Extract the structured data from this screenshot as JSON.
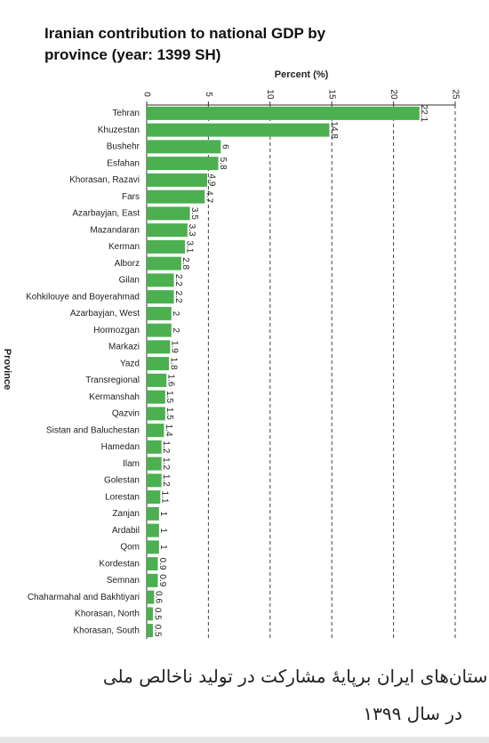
{
  "chart_data": {
    "type": "bar",
    "orientation": "horizontal",
    "title": "Iranian contribution to national GDP by province (year: 1399 SH)",
    "x_label": "Percent (%)",
    "y_label": "Province",
    "categories": [
      "Tehran",
      "Khuzestan",
      "Bushehr",
      "Esfahan",
      "Khorasan, Razavi",
      "Fars",
      "Azarbayjan, East",
      "Mazandaran",
      "Kerman",
      "Alborz",
      "Gilan",
      "Kohkilouye and Boyerahmad",
      "Azarbayjan, West",
      "Hormozgan",
      "Markazi",
      "Yazd",
      "Transregional",
      "Kermanshah",
      "Qazvin",
      "Sistan and Baluchestan",
      "Hamedan",
      "Ilam",
      "Golestan",
      "Lorestan",
      "Zanjan",
      "Ardabil",
      "Qom",
      "Kordestan",
      "Semnan",
      "Chaharmahal and Bakhtiyari",
      "Khorasan, North",
      "Khorasan, South"
    ],
    "values": [
      22.1,
      14.8,
      6,
      5.8,
      4.9,
      4.7,
      3.5,
      3.3,
      3.1,
      2.8,
      2.2,
      2.2,
      2,
      2,
      1.9,
      1.8,
      1.6,
      1.5,
      1.5,
      1.4,
      1.2,
      1.2,
      1.2,
      1.1,
      1,
      1,
      1,
      0.9,
      0.9,
      0.6,
      0.5,
      0.5
    ],
    "color": "#4caf50",
    "xlim": [
      0,
      25
    ],
    "xticks": [
      0,
      5,
      10,
      15,
      20,
      25
    ],
    "grid": true
  },
  "caption": [
    "استان‌های ایران برپایهٔ مشارکت در تولید ناخالص ملی",
    "در سال ۱۳۹۹"
  ]
}
